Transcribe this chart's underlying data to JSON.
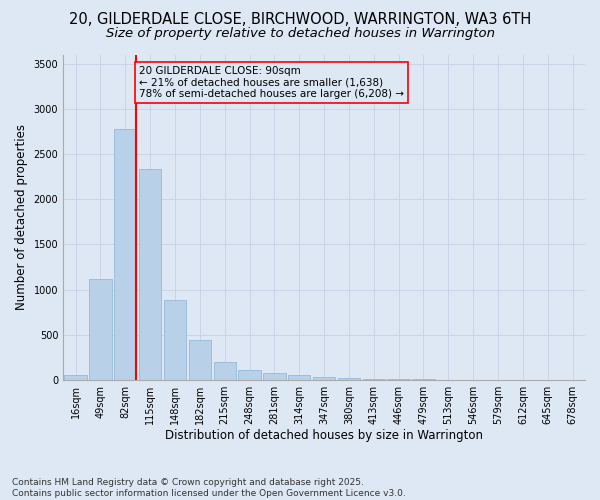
{
  "title_line1": "20, GILDERDALE CLOSE, BIRCHWOOD, WARRINGTON, WA3 6TH",
  "title_line2": "Size of property relative to detached houses in Warrington",
  "xlabel": "Distribution of detached houses by size in Warrington",
  "ylabel": "Number of detached properties",
  "categories": [
    "16sqm",
    "49sqm",
    "82sqm",
    "115sqm",
    "148sqm",
    "182sqm",
    "215sqm",
    "248sqm",
    "281sqm",
    "314sqm",
    "347sqm",
    "380sqm",
    "413sqm",
    "446sqm",
    "479sqm",
    "513sqm",
    "546sqm",
    "579sqm",
    "612sqm",
    "645sqm",
    "678sqm"
  ],
  "values": [
    50,
    1120,
    2780,
    2340,
    880,
    440,
    200,
    105,
    75,
    55,
    35,
    15,
    10,
    5,
    3,
    2,
    1,
    1,
    0,
    0,
    0
  ],
  "bar_color": "#b8d0e8",
  "bar_edge_color": "#8ab4d4",
  "grid_color": "#c8d4e8",
  "background_color": "#dde8f4",
  "vline_color": "red",
  "annotation_title": "20 GILDERDALE CLOSE: 90sqm",
  "annotation_line1": "← 21% of detached houses are smaller (1,638)",
  "annotation_line2": "78% of semi-detached houses are larger (6,208) →",
  "annotation_box_color": "red",
  "ylim": [
    0,
    3600
  ],
  "yticks": [
    0,
    500,
    1000,
    1500,
    2000,
    2500,
    3000,
    3500
  ],
  "footer_line1": "Contains HM Land Registry data © Crown copyright and database right 2025.",
  "footer_line2": "Contains public sector information licensed under the Open Government Licence v3.0.",
  "title_fontsize": 10.5,
  "subtitle_fontsize": 9.5,
  "axis_label_fontsize": 8.5,
  "tick_fontsize": 7,
  "annotation_fontsize": 7.5,
  "footer_fontsize": 6.5
}
